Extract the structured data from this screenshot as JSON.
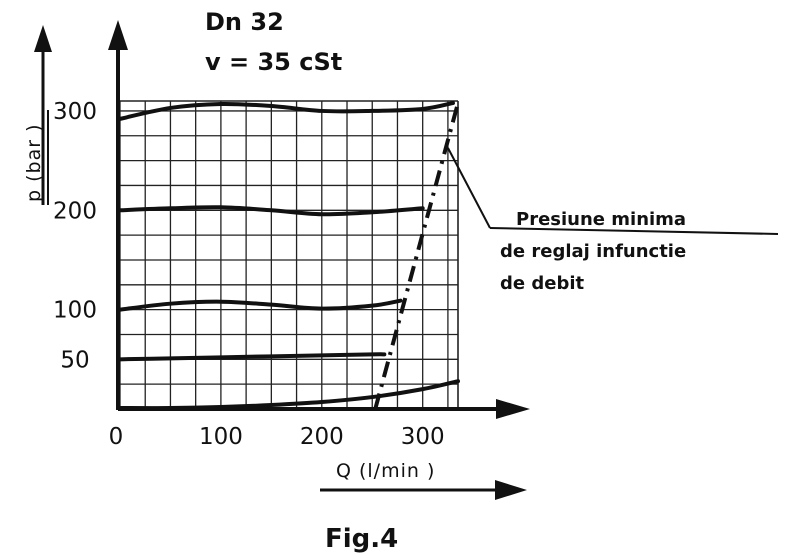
{
  "header": {
    "line1": "Dn 32",
    "line2": "v = 35 cSt"
  },
  "figure_caption": "Fig.4",
  "annotation": {
    "lines": [
      "Presiune minima",
      "de reglaj infunctie",
      "de debit"
    ]
  },
  "colors": {
    "ink": "#111111",
    "grid": "#222222",
    "background": "#ffffff"
  },
  "chart_data": {
    "type": "line",
    "title": "",
    "xlabel": "Q (l/min )",
    "ylabel": "p (bar )",
    "xlim": [
      0,
      335
    ],
    "ylim": [
      0,
      310
    ],
    "x_ticks": [
      0,
      100,
      200,
      300
    ],
    "y_ticks": [
      50,
      100,
      200,
      300
    ],
    "grid": true,
    "series": [
      {
        "name": "",
        "style": "solid",
        "x": [
          0,
          50,
          100,
          150,
          200,
          250,
          300,
          335
        ],
        "y": [
          1,
          1,
          2,
          4,
          7,
          12,
          20,
          28
        ]
      },
      {
        "name": "",
        "style": "solid",
        "x": [
          0,
          50,
          100,
          150,
          200,
          250,
          262
        ],
        "y": [
          50,
          51,
          52,
          53,
          54,
          55,
          55
        ]
      },
      {
        "name": "",
        "style": "solid",
        "x": [
          0,
          50,
          100,
          150,
          200,
          250,
          278
        ],
        "y": [
          100,
          106,
          108,
          105,
          101,
          104,
          109
        ]
      },
      {
        "name": "",
        "style": "solid",
        "x": [
          0,
          50,
          100,
          150,
          200,
          250,
          300
        ],
        "y": [
          200,
          202,
          203,
          200,
          196,
          198,
          202
        ]
      },
      {
        "name": "",
        "style": "solid",
        "x": [
          0,
          50,
          100,
          150,
          200,
          250,
          300,
          330
        ],
        "y": [
          292,
          303,
          307,
          305,
          300,
          300,
          302,
          308
        ]
      },
      {
        "name": "Presiune minima de reglaj infunctie de debit",
        "style": "dashdot",
        "x": [
          253,
          335
        ],
        "y": [
          0,
          308
        ]
      }
    ]
  }
}
